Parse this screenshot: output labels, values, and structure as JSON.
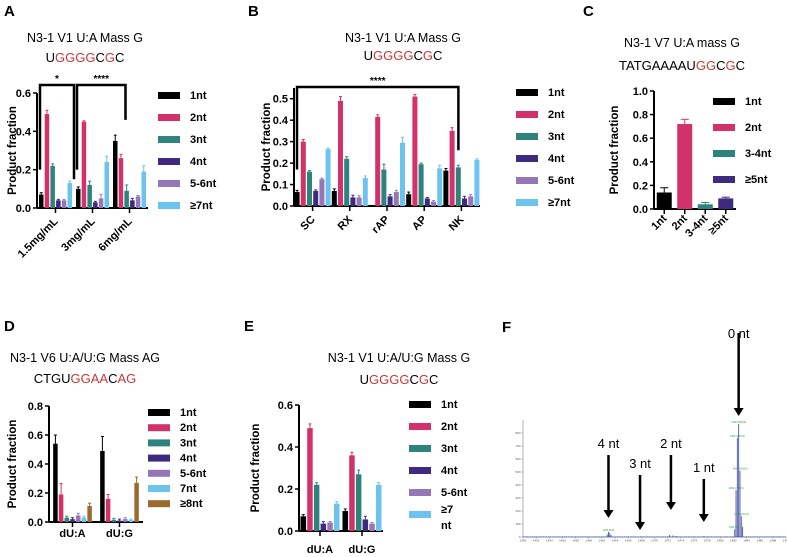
{
  "colors": {
    "1nt": "#000000",
    "2nt": "#d3316a",
    "3nt": "#2e847c",
    "4nt": "#3e2a7e",
    "5-6nt": "#9577b8",
    "7nt": "#6cc3ee",
    "8nt": "#9b6a2c",
    "highlight": "#c8383a",
    "ms_line": "#4a55a8"
  },
  "chart_data": [
    {
      "id": "A",
      "type": "bar",
      "panel_label": "A",
      "title": "N3-1 V1 U:A Mass G",
      "sequence": [
        {
          "t": "U",
          "h": false
        },
        {
          "t": "GGGG",
          "h": true
        },
        {
          "t": "C",
          "h": false
        },
        {
          "t": "G",
          "h": true
        },
        {
          "t": "C",
          "h": false
        }
      ],
      "ylabel": "Product fraction",
      "ylim": [
        0,
        0.6
      ],
      "yticks": [
        "0.0",
        "0.2",
        "0.4",
        "0.6"
      ],
      "categories": [
        "1.5mg/mL",
        "3mg/mL",
        "6mg/mL"
      ],
      "series": [
        {
          "name": "1nt",
          "color_key": "1nt",
          "values": [
            0.07,
            0.1,
            0.35
          ],
          "err": [
            0.01,
            0.01,
            0.03
          ]
        },
        {
          "name": "2nt",
          "color_key": "2nt",
          "values": [
            0.49,
            0.45,
            0.26
          ],
          "err": [
            0.02,
            0.005,
            0.02
          ]
        },
        {
          "name": "3nt",
          "color_key": "3nt",
          "values": [
            0.22,
            0.12,
            0.09
          ],
          "err": [
            0.01,
            0.02,
            0.03
          ]
        },
        {
          "name": "4nt",
          "color_key": "4nt",
          "values": [
            0.04,
            0.03,
            0.04
          ],
          "err": [
            0.005,
            0.005,
            0.01
          ]
        },
        {
          "name": "5-6nt",
          "color_key": "5-6nt",
          "values": [
            0.04,
            0.05,
            0.06
          ],
          "err": [
            0.005,
            0.02,
            0.005
          ]
        },
        {
          "name": "≥7nt",
          "color_key": "7nt",
          "values": [
            0.13,
            0.24,
            0.19
          ],
          "err": [
            0.01,
            0.03,
            0.03
          ]
        }
      ],
      "significance": [
        {
          "from": 0,
          "to": 1,
          "label": "*"
        },
        {
          "from": 1,
          "to": 2,
          "label": "****"
        }
      ],
      "legend": "right"
    },
    {
      "id": "B",
      "type": "bar",
      "panel_label": "B",
      "title": "N3-1 V1 U:A Mass G",
      "sequence": [
        {
          "t": "U",
          "h": false
        },
        {
          "t": "GGGG",
          "h": true
        },
        {
          "t": "C",
          "h": false
        },
        {
          "t": "G",
          "h": true
        },
        {
          "t": "C",
          "h": false
        }
      ],
      "ylabel": "Product fraction",
      "ylim": [
        0,
        0.55
      ],
      "yticks": [
        "0.0",
        "0.1",
        "0.2",
        "0.3",
        "0.4",
        "0.5"
      ],
      "categories": [
        "SC",
        "RX",
        "rAP",
        "AP",
        "NK"
      ],
      "series": [
        {
          "name": "1nt",
          "color_key": "1nt",
          "values": [
            0.065,
            0.07,
            0.0,
            0.055,
            0.165
          ],
          "err": [
            0.008,
            0.01,
            0,
            0.01,
            0.01
          ]
        },
        {
          "name": "2nt",
          "color_key": "2nt",
          "values": [
            0.3,
            0.49,
            0.415,
            0.51,
            0.35
          ],
          "err": [
            0.01,
            0.02,
            0.01,
            0.01,
            0.015
          ]
        },
        {
          "name": "3nt",
          "color_key": "3nt",
          "values": [
            0.16,
            0.22,
            0.17,
            0.195,
            0.18
          ],
          "err": [
            0.005,
            0.01,
            0.025,
            0.005,
            0.01
          ]
        },
        {
          "name": "4nt",
          "color_key": "4nt",
          "values": [
            0.07,
            0.04,
            0.045,
            0.035,
            0.035
          ],
          "err": [
            0.005,
            0.01,
            0.008,
            0.005,
            0.01
          ]
        },
        {
          "name": "5-6nt",
          "color_key": "5-6nt",
          "values": [
            0.125,
            0.04,
            0.065,
            0.02,
            0.045
          ],
          "err": [
            0.005,
            0.008,
            0.008,
            0.005,
            0.008
          ]
        },
        {
          "name": "≥7nt",
          "color_key": "7nt",
          "values": [
            0.265,
            0.13,
            0.295,
            0.175,
            0.215
          ],
          "err": [
            0.005,
            0.01,
            0.025,
            0.015,
            0.005
          ]
        }
      ],
      "significance": [
        {
          "from": 0,
          "to": 4,
          "label": "****"
        }
      ],
      "legend": "right"
    },
    {
      "id": "C",
      "type": "bar",
      "panel_label": "C",
      "title": "N3-1 V7 U:A mass G",
      "sequence": [
        {
          "t": "TATGAAAAU",
          "h": false
        },
        {
          "t": "GG",
          "h": true
        },
        {
          "t": "C",
          "h": false
        },
        {
          "t": "G",
          "h": true
        },
        {
          "t": "C",
          "h": false
        }
      ],
      "ylabel": "Product fraction",
      "ylim": [
        0,
        1.0
      ],
      "yticks": [
        "0.0",
        "0.2",
        "0.4",
        "0.6",
        "0.8",
        "1.0"
      ],
      "categories": [
        "1nt",
        "2nt",
        "3-4nt",
        "≥5nt"
      ],
      "series": [
        {
          "name": "value",
          "values": [
            0.14,
            0.72,
            0.04,
            0.09
          ],
          "err": [
            0.04,
            0.04,
            0.015,
            0.01
          ],
          "color_keys": [
            "1nt",
            "2nt",
            "3nt",
            "4nt"
          ]
        }
      ],
      "legend_items": [
        {
          "name": "1nt",
          "color_key": "1nt"
        },
        {
          "name": "2nt",
          "color_key": "2nt"
        },
        {
          "name": "3-4nt",
          "color_key": "3nt"
        },
        {
          "name": "≥5nt",
          "color_key": "4nt"
        }
      ],
      "legend": "right"
    },
    {
      "id": "D",
      "type": "bar",
      "panel_label": "D",
      "title": "N3-1 V6 U:A/U:G Mass AG",
      "sequence": [
        {
          "t": "CTGU",
          "h": false
        },
        {
          "t": "GGAA",
          "h": true
        },
        {
          "t": "C",
          "h": false
        },
        {
          "t": "AG",
          "h": true
        }
      ],
      "ylabel": "Product fraction",
      "ylim": [
        0,
        0.8
      ],
      "yticks": [
        "0.0",
        "0.2",
        "0.4",
        "0.6",
        "0.8"
      ],
      "categories": [
        "dU:A",
        "dU:G"
      ],
      "series": [
        {
          "name": "1nt",
          "color_key": "1nt",
          "values": [
            0.54,
            0.49
          ],
          "err": [
            0.06,
            0.1
          ]
        },
        {
          "name": "2nt",
          "color_key": "2nt",
          "values": [
            0.19,
            0.16
          ],
          "err": [
            0.075,
            0.03
          ]
        },
        {
          "name": "3nt",
          "color_key": "3nt",
          "values": [
            0.03,
            0.015
          ],
          "err": [
            0.01,
            0.01
          ]
        },
        {
          "name": "4nt",
          "color_key": "4nt",
          "values": [
            0.02,
            0.01
          ],
          "err": [
            0.01,
            0.01
          ]
        },
        {
          "name": "5-6nt",
          "color_key": "5-6nt",
          "values": [
            0.045,
            0.02
          ],
          "err": [
            0.015,
            0.01
          ]
        },
        {
          "name": "7nt",
          "color_key": "7nt",
          "values": [
            0.03,
            0.015
          ],
          "err": [
            0.01,
            0.005
          ]
        },
        {
          "name": "≥8nt",
          "color_key": "8nt",
          "values": [
            0.11,
            0.27
          ],
          "err": [
            0.02,
            0.04
          ]
        }
      ],
      "legend": "right"
    },
    {
      "id": "E",
      "type": "bar",
      "panel_label": "E",
      "title": "N3-1 V1 U:A/U:G Mass G",
      "sequence": [
        {
          "t": "U",
          "h": false
        },
        {
          "t": "GGGG",
          "h": true
        },
        {
          "t": "C",
          "h": false
        },
        {
          "t": "G",
          "h": true
        },
        {
          "t": "C",
          "h": false
        }
      ],
      "ylabel": "Product fraction",
      "ylim": [
        0,
        0.6
      ],
      "yticks": [
        "0.0",
        "0.2",
        "0.4",
        "0.6"
      ],
      "categories": [
        "dU:A",
        "dU:G"
      ],
      "series": [
        {
          "name": "1nt",
          "color_key": "1nt",
          "values": [
            0.07,
            0.095
          ],
          "err": [
            0.008,
            0.01
          ]
        },
        {
          "name": "2nt",
          "color_key": "2nt",
          "values": [
            0.49,
            0.36
          ],
          "err": [
            0.02,
            0.015
          ]
        },
        {
          "name": "3nt",
          "color_key": "3nt",
          "values": [
            0.22,
            0.27
          ],
          "err": [
            0.01,
            0.02
          ]
        },
        {
          "name": "4nt",
          "color_key": "4nt",
          "values": [
            0.035,
            0.055
          ],
          "err": [
            0.01,
            0.015
          ]
        },
        {
          "name": "5-6nt",
          "color_key": "5-6nt",
          "values": [
            0.04,
            0.035
          ],
          "err": [
            0.005,
            0.005
          ]
        },
        {
          "name": "≥7 nt",
          "color_key": "7nt",
          "values": [
            0.13,
            0.22
          ],
          "err": [
            0.01,
            0.01
          ]
        }
      ],
      "legend": "right"
    },
    {
      "id": "F",
      "type": "line",
      "panel_label": "F",
      "title": "",
      "xlim": [
        1450,
        1490
      ],
      "ylim": [
        0,
        900
      ],
      "xticks": [
        "1450",
        "1452",
        "1454",
        "1456",
        "1458",
        "1460",
        "1462",
        "1464",
        "1466",
        "1468",
        "1470",
        "1472",
        "1474",
        "1476",
        "1478",
        "1480",
        "1482",
        "1484",
        "1486",
        "1488",
        "1490"
      ],
      "yticks": [
        "0",
        "100",
        "200",
        "300",
        "400",
        "500",
        "600",
        "700",
        "800"
      ],
      "peaks": [
        {
          "x": 1463.0,
          "y": 40
        },
        {
          "x": 1463.2,
          "y": 30
        },
        {
          "x": 1462.8,
          "y": 20
        },
        {
          "x": 1463.4,
          "y": 15
        },
        {
          "x": 1472.3,
          "y": 15
        },
        {
          "x": 1472.8,
          "y": 12
        },
        {
          "x": 1473.3,
          "y": 8
        },
        {
          "x": 1477.5,
          "y": 6
        },
        {
          "x": 1482.4,
          "y": 360
        },
        {
          "x": 1482.6,
          "y": 760
        },
        {
          "x": 1482.8,
          "y": 870
        },
        {
          "x": 1483.0,
          "y": 510
        },
        {
          "x": 1483.2,
          "y": 160
        },
        {
          "x": 1483.4,
          "y": 80
        },
        {
          "x": 1482.2,
          "y": 60
        }
      ],
      "peak_labels": [
        {
          "x": 1463.0,
          "y": 40,
          "text": "1463.1160",
          "color": "black"
        },
        {
          "x": 1482.8,
          "y": 870,
          "text": "1482.8058(3)",
          "color": "green"
        },
        {
          "x": 1482.6,
          "y": 760,
          "text": "1482.4697(3)",
          "color": "green"
        },
        {
          "x": 1483.0,
          "y": 510,
          "text": "1483.1405(3)",
          "color": "green"
        },
        {
          "x": 1482.4,
          "y": 360,
          "text": "1482.1356(3)",
          "color": "black"
        },
        {
          "x": 1483.2,
          "y": 160,
          "text": "1483.4712(3)",
          "color": "green"
        },
        {
          "x": 1482.2,
          "y": 60,
          "text": "1481.8001",
          "color": "black"
        }
      ],
      "annotations": [
        {
          "label": "0 nt",
          "x": 1482.8
        },
        {
          "label": "1 nt",
          "x": 1477.5
        },
        {
          "label": "2 nt",
          "x": 1472.5
        },
        {
          "label": "3 nt",
          "x": 1467.8
        },
        {
          "label": "4 nt",
          "x": 1463.0
        }
      ]
    }
  ]
}
